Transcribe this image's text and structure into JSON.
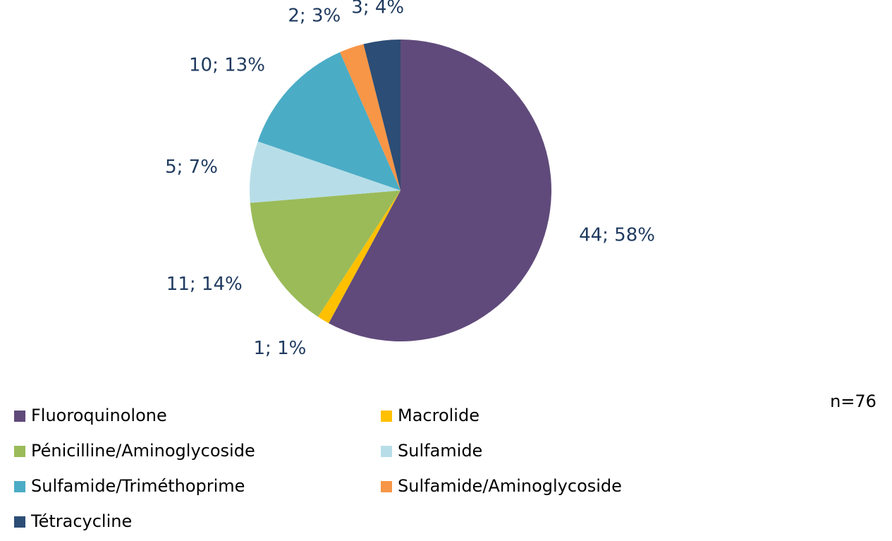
{
  "chart_data": {
    "type": "pie",
    "categories": [
      "Fluoroquinolone",
      "Macrolide",
      "Pénicilline/Aminoglycoside",
      "Sulfamide",
      "Sulfamide/Triméthoprime",
      "Sulfamide/Aminoglycoside",
      "Tétracycline"
    ],
    "values": [
      44,
      1,
      11,
      5,
      10,
      2,
      3
    ],
    "value_labels": [
      "44; 58%",
      "1; 1%",
      "11; 14%",
      "5; 7%",
      "10; 13%",
      "2; 3%",
      "3; 4%"
    ],
    "colors": [
      "#604a7b",
      "#ffc000",
      "#9bbb59",
      "#b7dee8",
      "#4bacc6",
      "#f79646",
      "#2c4d75"
    ],
    "annotation": "n=76",
    "legend": "bottom"
  }
}
